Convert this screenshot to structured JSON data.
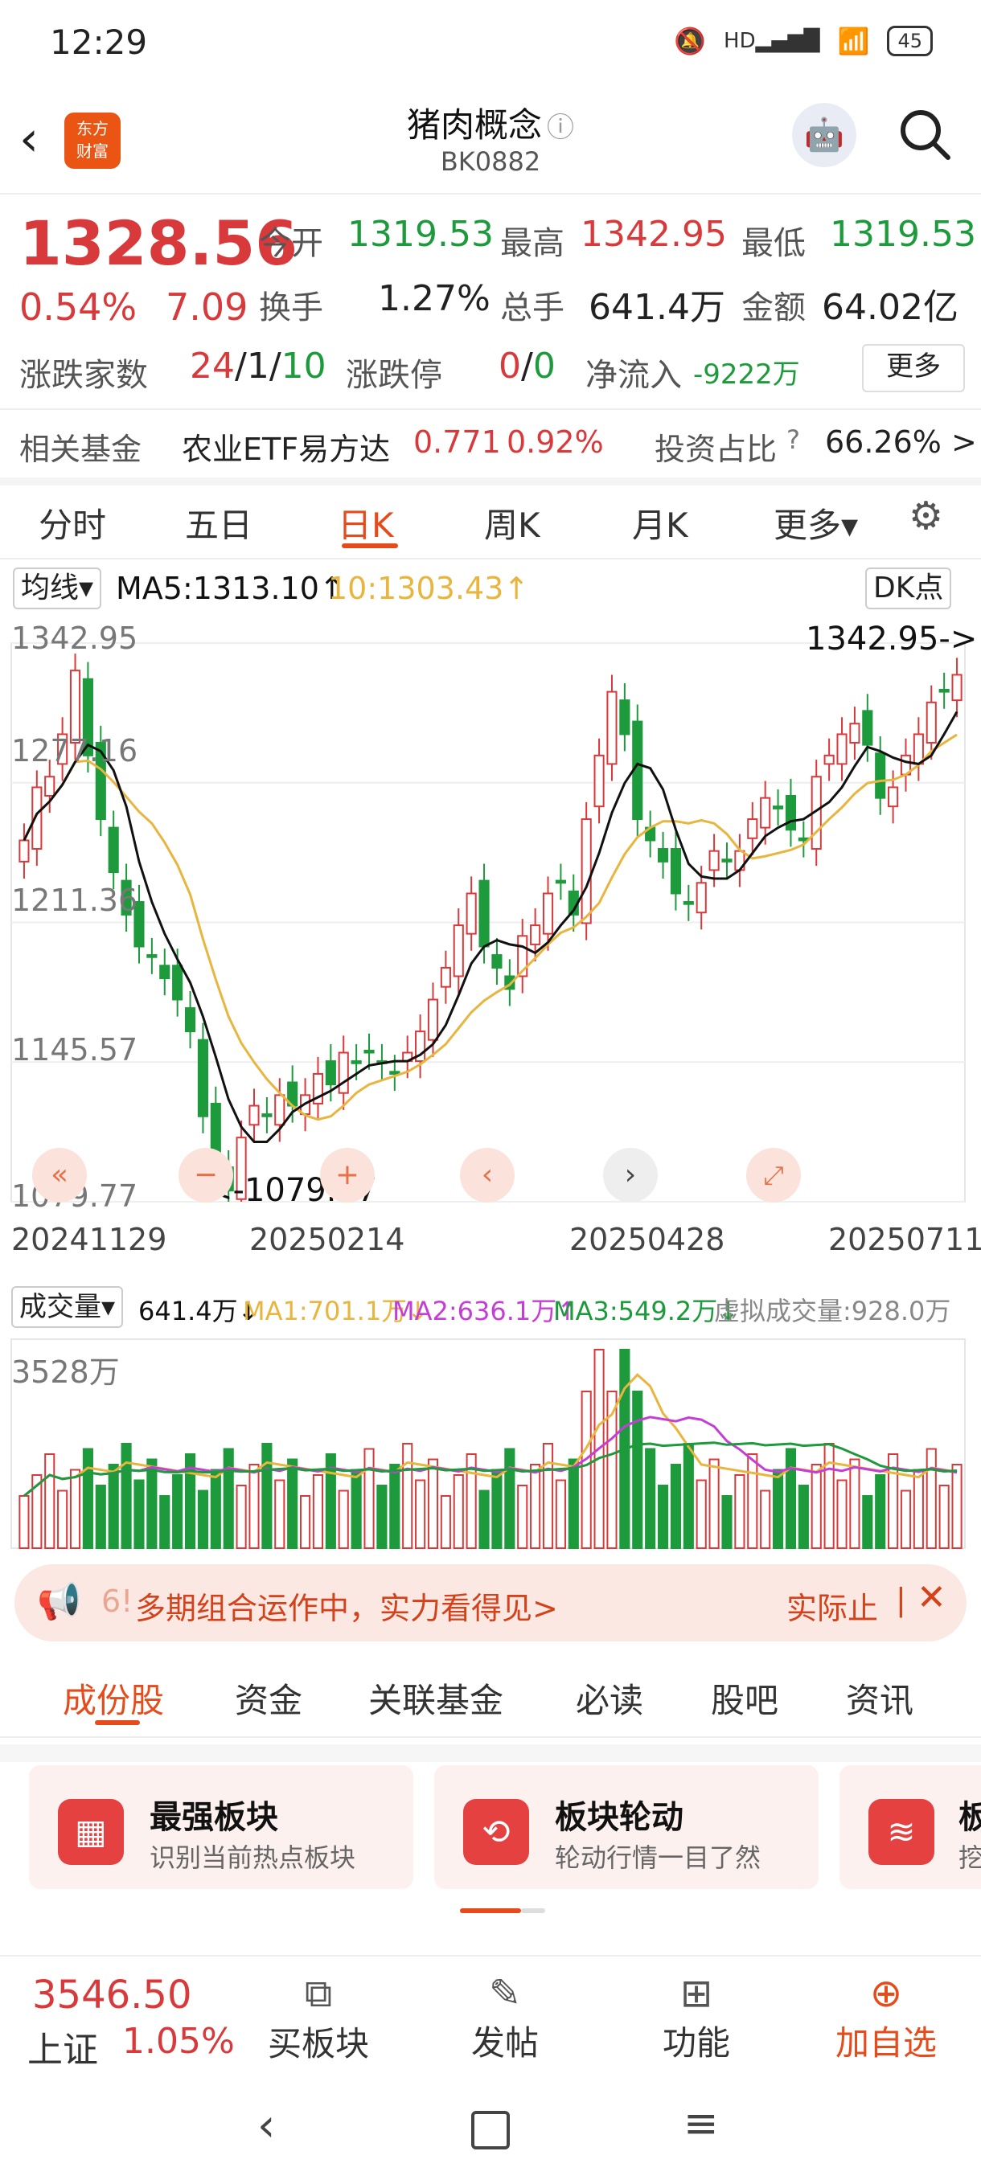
{
  "status": {
    "time": "12:29",
    "network": "HD",
    "battery": "45"
  },
  "header": {
    "logo_line1": "东方",
    "logo_line2": "财富",
    "title": "猪肉概念",
    "info_icon": "ⓘ",
    "code": "BK0882"
  },
  "quote": {
    "price": "1328.56",
    "pct": "0.54%",
    "change": "7.09",
    "open_label": "今开",
    "open": "1319.53",
    "high_label": "最高",
    "high": "1342.95",
    "low_label": "最低",
    "low": "1319.53",
    "turnover_label": "换手",
    "turnover": "1.27%",
    "volume_label": "总手",
    "volume": "641.4万",
    "amount_label": "金额",
    "amount": "64.02亿",
    "advdec_label": "涨跌家数",
    "adv": "24",
    "sep1": "/",
    "flat": "1",
    "sep2": "/",
    "dec": "10",
    "limit_label": "涨跌停",
    "limit_up": "0",
    "sep3": "/",
    "limit_down": "0",
    "netflow_label": "净流入",
    "netflow": "-9222万",
    "more": "更多"
  },
  "fund": {
    "label": "相关基金",
    "name": "农业ETF易方达",
    "price": "0.771",
    "pct": "0.92%",
    "ratio_label": "投资占比",
    "ratio": "66.26%",
    "arrow": ">"
  },
  "ktabs": [
    "分时",
    "五日",
    "日K",
    "周K",
    "月K",
    "更多▾"
  ],
  "ktab_active": 2,
  "chart_header": {
    "ma_select": "均线▾",
    "ma5": "MA5:1313.10↑",
    "ma10": "10:1303.43↑",
    "dk": "DK点"
  },
  "chart_marks": {
    "high_mark": "1342.95->",
    "low_mark": "<-1079.77"
  },
  "chart_data": {
    "type": "candlestick",
    "y_ticks": [
      "1342.95",
      "1277.16",
      "1211.36",
      "1145.57",
      "1079.77"
    ],
    "x_ticks": [
      "20241129",
      "20250214",
      "20250428",
      "20250711"
    ],
    "ylim": [
      1079.77,
      1342.95
    ],
    "ma5_last": 1313.1,
    "ma10_last": 1303.43,
    "close_points": [
      1250,
      1275,
      1280,
      1300,
      1330,
      1290,
      1260,
      1235,
      1215,
      1200,
      1195,
      1185,
      1175,
      1160,
      1120,
      1100,
      1085,
      1110,
      1125,
      1120,
      1130,
      1125,
      1130,
      1140,
      1135,
      1150,
      1145,
      1150,
      1145,
      1140,
      1150,
      1160,
      1175,
      1190,
      1210,
      1225,
      1200,
      1190,
      1180,
      1205,
      1210,
      1225,
      1230,
      1215,
      1260,
      1290,
      1320,
      1300,
      1260,
      1250,
      1240,
      1225,
      1220,
      1230,
      1245,
      1240,
      1245,
      1260,
      1270,
      1265,
      1255,
      1250,
      1280,
      1290,
      1300,
      1305,
      1295,
      1270,
      1275,
      1290,
      1300,
      1315,
      1320,
      1328
    ],
    "volume_header": {
      "label": "成交量▾",
      "vol": "641.4万↓",
      "ma1": "MA1:701.1万↓",
      "ma2": "MA2:636.1万↑",
      "ma3": "MA3:549.2万↓",
      "virtual": "虚拟成交量:928.0万"
    },
    "volume_max_label": "3528万"
  },
  "banner": {
    "prefix": "6!",
    "text": "多期组合运作中，实力看得见>",
    "side": "实际止",
    "close": "✕"
  },
  "section_tabs": [
    "成份股",
    "资金",
    "关联基金",
    "必读",
    "股吧",
    "资讯"
  ],
  "section_active": 0,
  "cards": [
    {
      "title": "最强板块",
      "sub": "识别当前热点板块"
    },
    {
      "title": "板块轮动",
      "sub": "轮动行情一目了然"
    },
    {
      "title": "板",
      "sub": "挖"
    }
  ],
  "bottom": {
    "index_value": "3546.50",
    "index_name": "上证",
    "index_pct": "1.05%",
    "items": [
      "买板块",
      "发帖",
      "功能",
      "加自选"
    ]
  },
  "colors": {
    "up": "#d8393b",
    "down": "#1d9a3c",
    "accent": "#e64b1c",
    "ma5": "#111111",
    "ma10": "#e8b53f",
    "ma2": "#c43ed6"
  }
}
